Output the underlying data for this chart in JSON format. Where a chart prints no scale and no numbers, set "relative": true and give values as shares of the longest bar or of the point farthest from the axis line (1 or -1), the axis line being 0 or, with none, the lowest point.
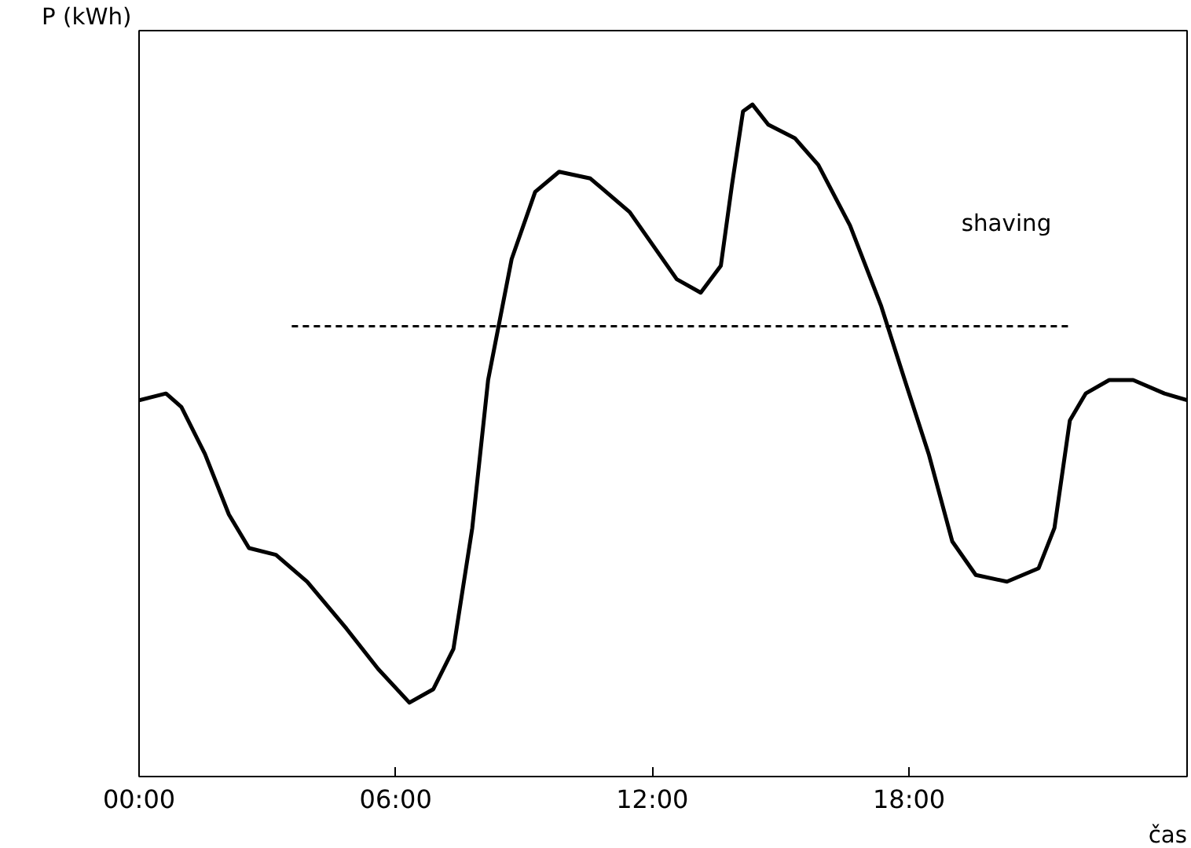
{
  "chart_data": {
    "type": "line",
    "relative": true,
    "ylabel": "P (kWh)",
    "xlabel": "čas",
    "x": [
      0,
      0.63,
      0.99,
      1.54,
      2.1,
      2.57,
      3.2,
      3.93,
      4.85,
      5.59,
      6.32,
      6.88,
      7.35,
      7.79,
      8.16,
      8.71,
      9.26,
      9.82,
      10.55,
      11.47,
      12.57,
      13.13,
      13.6,
      13.86,
      14.12,
      14.34,
      14.71,
      15.33,
      15.88,
      16.62,
      17.35,
      17.9,
      18.46,
      19.01,
      19.56,
      20.29,
      21.03,
      21.4,
      21.76,
      22.13,
      22.68,
      23.24,
      23.97,
      24.5
    ],
    "xlim": [
      0,
      24.5
    ],
    "xticks": [
      {
        "value": 0,
        "label": "00:00"
      },
      {
        "value": 6,
        "label": "06:00"
      },
      {
        "value": 12,
        "label": "12:00"
      },
      {
        "value": 18,
        "label": "18:00"
      }
    ],
    "series": [
      {
        "color": "#000000",
        "values": [
          0.56,
          0.57,
          0.55,
          0.48,
          0.39,
          0.34,
          0.33,
          0.29,
          0.22,
          0.16,
          0.11,
          0.13,
          0.19,
          0.37,
          0.59,
          0.77,
          0.87,
          0.9,
          0.89,
          0.84,
          0.74,
          0.72,
          0.76,
          0.88,
          0.99,
          1,
          0.97,
          0.95,
          0.91,
          0.82,
          0.7,
          0.59,
          0.48,
          0.35,
          0.3,
          0.29,
          0.31,
          0.37,
          0.53,
          0.57,
          0.59,
          0.59,
          0.57,
          0.56
        ]
      },
      {
        "type": "line",
        "line_style": "dashed",
        "color": "#000000",
        "x": [
          3.57,
          21.76
        ],
        "values": [
          0.67,
          0.67
        ]
      }
    ],
    "annotations": [
      "shaving"
    ],
    "grid": false
  }
}
